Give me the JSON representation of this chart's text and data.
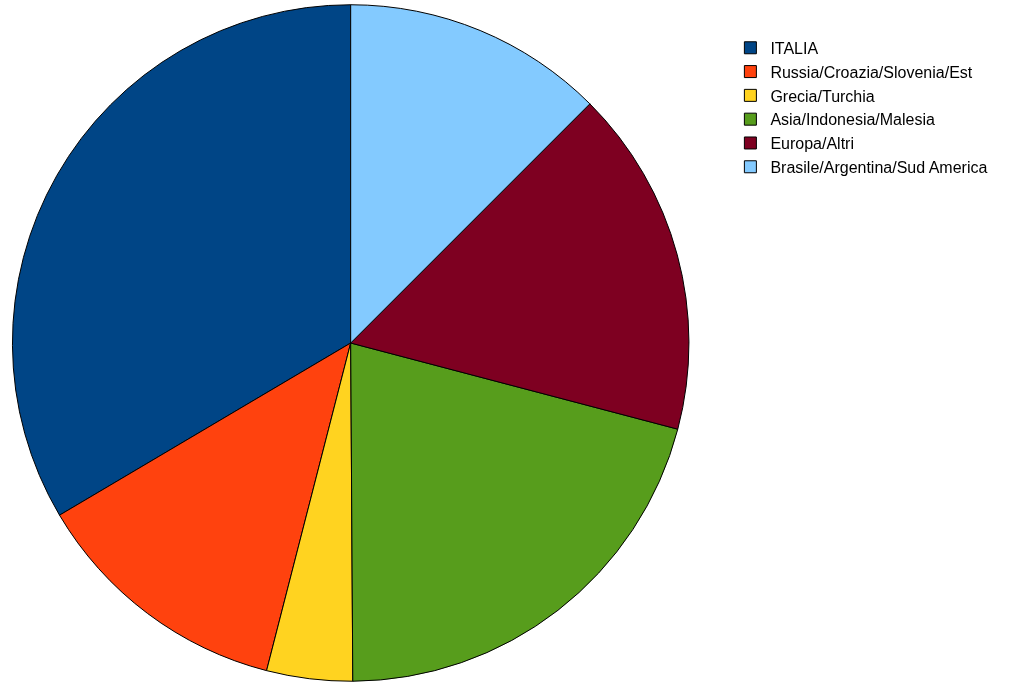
{
  "chart_data": {
    "type": "pie",
    "categories": [
      "ITALIA",
      "Russia/Croazia/Slovenia/Est",
      "Grecia/Turchia",
      "Asia/Indonesia/Malesia",
      "Europa/Altri",
      "Brasile/Argentina/Sud America"
    ],
    "values": [
      33.5,
      12.5,
      4.1,
      20.8,
      16.6,
      12.5
    ],
    "colors": [
      "#004586",
      "#ff420e",
      "#ffd320",
      "#579d1c",
      "#7e0021",
      "#83caff"
    ],
    "legend": "top right"
  }
}
